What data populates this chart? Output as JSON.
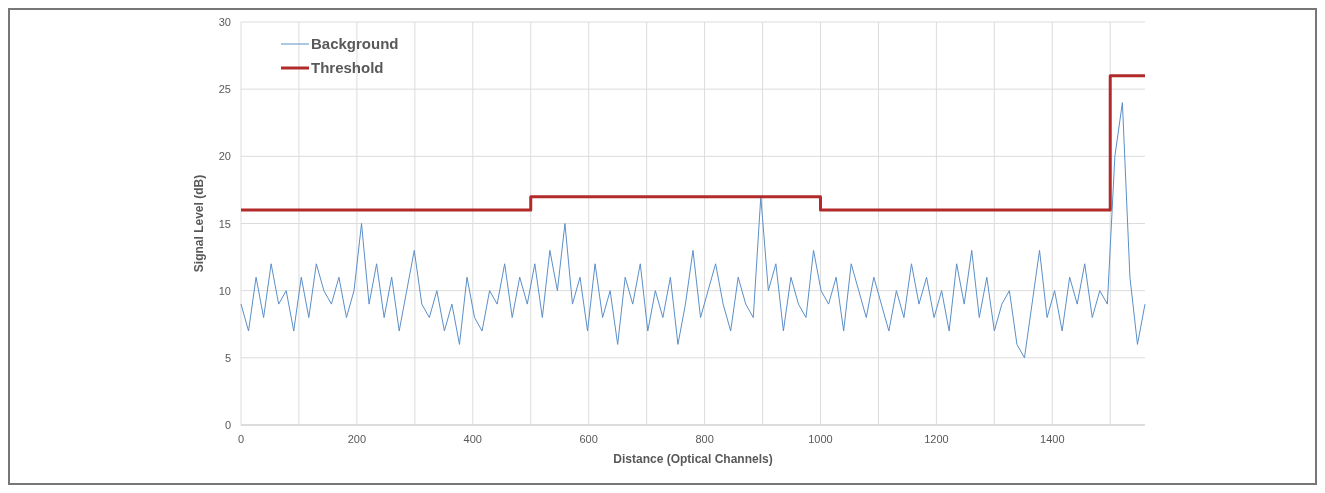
{
  "chart_data": {
    "type": "line",
    "xlabel": "Distance (Optical Channels)",
    "ylabel": "Signal Level (dB)",
    "xlim": [
      0,
      1560
    ],
    "ylim": [
      0,
      30
    ],
    "xticks": [
      0,
      {
        "value": 100,
        "label": null
      },
      200,
      {
        "value": 300,
        "label": null
      },
      400,
      {
        "value": 500,
        "label": null
      },
      600,
      {
        "value": 700,
        "label": null
      },
      800,
      {
        "value": 900,
        "label": null
      },
      1000,
      {
        "value": 1100,
        "label": null
      },
      1200,
      {
        "value": 1300,
        "label": null
      },
      1400,
      {
        "value": 1500,
        "label": null
      }
    ],
    "yticks": [
      0,
      5,
      10,
      15,
      20,
      25,
      30
    ],
    "grid": true,
    "legend": "top left",
    "series": [
      {
        "name": "Background",
        "color": "#5b8fc9",
        "x": [
          0,
          13,
          26,
          39,
          52,
          65,
          78,
          91,
          104,
          117,
          130,
          143,
          156,
          169,
          182,
          195,
          208,
          221,
          234,
          247,
          260,
          273,
          286,
          299,
          312,
          325,
          338,
          351,
          364,
          377,
          390,
          403,
          416,
          429,
          442,
          455,
          468,
          481,
          494,
          507,
          520,
          533,
          546,
          559,
          572,
          585,
          598,
          611,
          624,
          637,
          650,
          663,
          676,
          689,
          702,
          715,
          728,
          741,
          754,
          767,
          780,
          793,
          806,
          819,
          832,
          845,
          858,
          871,
          884,
          897,
          910,
          923,
          936,
          949,
          962,
          975,
          988,
          1001,
          1014,
          1027,
          1040,
          1053,
          1066,
          1079,
          1092,
          1105,
          1118,
          1131,
          1144,
          1157,
          1170,
          1183,
          1196,
          1209,
          1222,
          1235,
          1248,
          1261,
          1274,
          1287,
          1300,
          1313,
          1326,
          1339,
          1352,
          1365,
          1378,
          1391,
          1404,
          1417,
          1430,
          1443,
          1456,
          1469,
          1482,
          1495,
          1508,
          1521,
          1534,
          1547,
          1560
        ],
        "values": [
          9,
          7,
          11,
          8,
          12,
          9,
          10,
          7,
          11,
          8,
          12,
          10,
          9,
          11,
          8,
          10,
          15,
          9,
          12,
          8,
          11,
          7,
          10,
          13,
          9,
          8,
          10,
          7,
          9,
          6,
          11,
          8,
          7,
          10,
          9,
          12,
          8,
          11,
          9,
          12,
          8,
          13,
          10,
          15,
          9,
          11,
          7,
          12,
          8,
          10,
          6,
          11,
          9,
          12,
          7,
          10,
          8,
          11,
          6,
          9,
          13,
          8,
          10,
          12,
          9,
          7,
          11,
          9,
          8,
          17,
          10,
          12,
          7,
          11,
          9,
          8,
          13,
          10,
          9,
          11,
          7,
          12,
          10,
          8,
          11,
          9,
          7,
          10,
          8,
          12,
          9,
          11,
          8,
          10,
          7,
          12,
          9,
          13,
          8,
          11,
          7,
          9,
          10,
          6,
          5,
          9,
          13,
          8,
          10,
          7,
          11,
          9,
          12,
          8,
          10,
          9,
          20,
          24,
          11,
          6,
          9
        ]
      },
      {
        "name": "Threshold",
        "color": "#b22a2a",
        "type": "step",
        "x": [
          0,
          500,
          1000,
          1500,
          1560
        ],
        "values": [
          16,
          17,
          16,
          26,
          26
        ]
      }
    ]
  }
}
